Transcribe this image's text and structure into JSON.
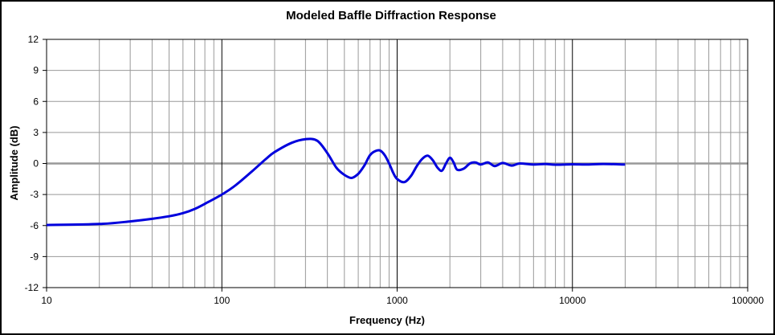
{
  "chart_data": {
    "type": "line",
    "title": "Modeled Baffle Diffraction Response",
    "xlabel": "Frequency (Hz)",
    "ylabel": "Amplitude (dB)",
    "x_scale": "log",
    "xlim": [
      10,
      100000
    ],
    "ylim": [
      -12,
      12
    ],
    "x_ticks": [
      10,
      100,
      1000,
      10000,
      100000
    ],
    "x_tick_labels": [
      "10",
      "100",
      "1000",
      "10000",
      "100000"
    ],
    "y_ticks": [
      12,
      9,
      6,
      3,
      0,
      -3,
      -6,
      -9,
      -12
    ],
    "y_tick_labels": [
      "12",
      "9",
      "6",
      "3",
      "0",
      "-3",
      "-6",
      "-9",
      "-12"
    ],
    "grid": true,
    "legend": "none",
    "colors": {
      "series": "#0000dd",
      "zero_line": "#999999",
      "grid": "#999999",
      "major_grid": "#000000"
    },
    "series": [
      {
        "values_x": [
          10,
          20,
          30,
          40,
          50,
          60,
          70,
          80,
          100,
          120,
          150,
          180,
          200,
          250,
          300,
          350,
          400,
          450,
          500,
          550,
          600,
          650,
          700,
          750,
          800,
          850,
          900,
          950,
          1000,
          1100,
          1200,
          1300,
          1400,
          1500,
          1600,
          1700,
          1800,
          1900,
          2000,
          2100,
          2200,
          2400,
          2600,
          2800,
          3000,
          3300,
          3600,
          4000,
          4500,
          5000,
          6000,
          7000,
          8000,
          10000,
          12000,
          15000,
          20000
        ],
        "values_y": [
          -5.95,
          -5.85,
          -5.6,
          -5.35,
          -5.1,
          -4.8,
          -4.4,
          -3.9,
          -3.0,
          -2.1,
          -0.7,
          0.5,
          1.1,
          2.0,
          2.35,
          2.2,
          1.0,
          -0.4,
          -1.1,
          -1.4,
          -1.0,
          -0.2,
          0.8,
          1.2,
          1.25,
          0.8,
          0.0,
          -0.9,
          -1.5,
          -1.8,
          -1.2,
          -0.2,
          0.5,
          0.75,
          0.3,
          -0.4,
          -0.7,
          0.0,
          0.55,
          0.1,
          -0.6,
          -0.5,
          0.0,
          0.1,
          -0.1,
          0.1,
          -0.25,
          0.05,
          -0.2,
          0.0,
          -0.1,
          -0.05,
          -0.12,
          -0.08,
          -0.1,
          -0.05,
          -0.1
        ]
      }
    ]
  }
}
